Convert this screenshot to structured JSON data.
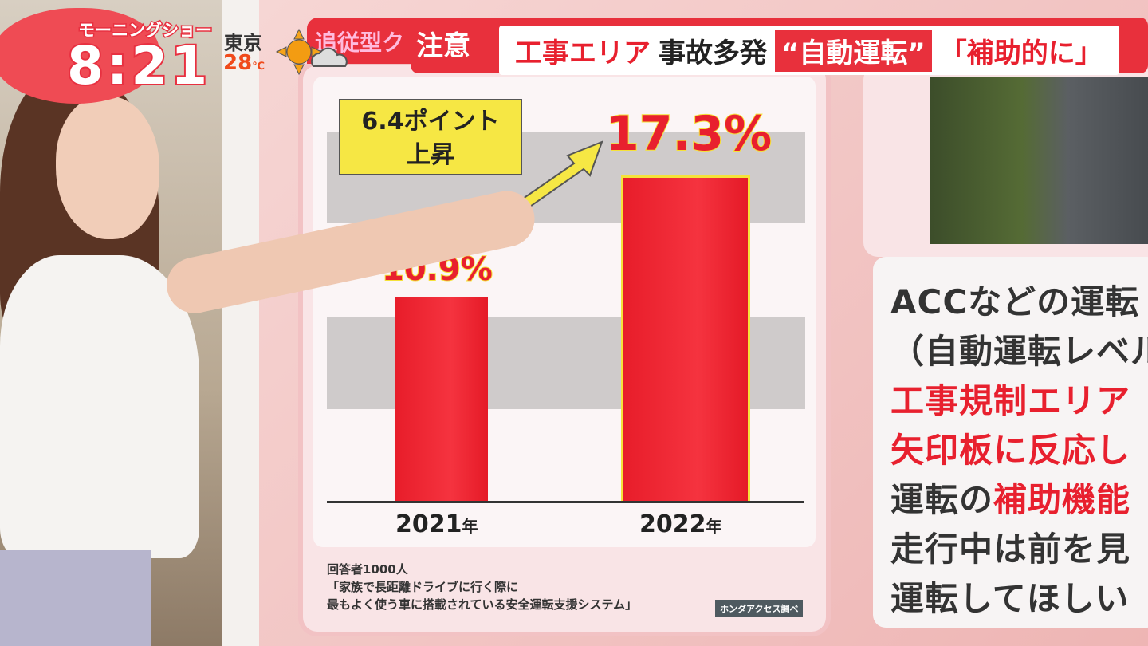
{
  "overlay": {
    "show_name": "モーニングショー",
    "time": "8:21",
    "city": "東京",
    "temperature": "28",
    "temp_unit": "℃",
    "weather_icon": "sun-cloud-icon"
  },
  "headline": {
    "prev_tab": "追従型ク",
    "tag": "注意",
    "part1": "工事エリア",
    "part2": "事故多発",
    "quote1": "“自動運転”",
    "quote2": "「補助的に」"
  },
  "chart_data": {
    "type": "bar",
    "categories": [
      "2021",
      "2022"
    ],
    "category_suffix": "年",
    "values": [
      10.9,
      17.3
    ],
    "value_labels": [
      "10.9%",
      "17.3%"
    ],
    "ylim": [
      0,
      17.3
    ],
    "grid": false,
    "annotation": {
      "line1": "6.4ポイント",
      "line2": "上昇"
    },
    "bar_color": "#e8202e",
    "highlight_color": "#f5e23a"
  },
  "notes": {
    "respondents": "回答者1000人",
    "question_line1": "「家族で長距離ドライブに行く際に",
    "question_line2": "最もよく使う車に搭載されている安全運転支援システム」",
    "source": "ホンダアクセス調べ"
  },
  "side_panel": {
    "lines": [
      [
        {
          "t": "ACCなどの運転",
          "red": false
        }
      ],
      [
        {
          "t": "（自動運転レベル",
          "red": false
        }
      ],
      [
        {
          "t": "工事規制エリア",
          "red": true
        }
      ],
      [
        {
          "t": "矢印板に反応し",
          "red": true
        }
      ],
      [
        {
          "t": "運転の",
          "red": false
        },
        {
          "t": "補助機能",
          "red": true
        }
      ],
      [
        {
          "t": "走行中は前を見",
          "red": false
        }
      ],
      [
        {
          "t": "運転してほしい",
          "red": false
        }
      ]
    ]
  }
}
